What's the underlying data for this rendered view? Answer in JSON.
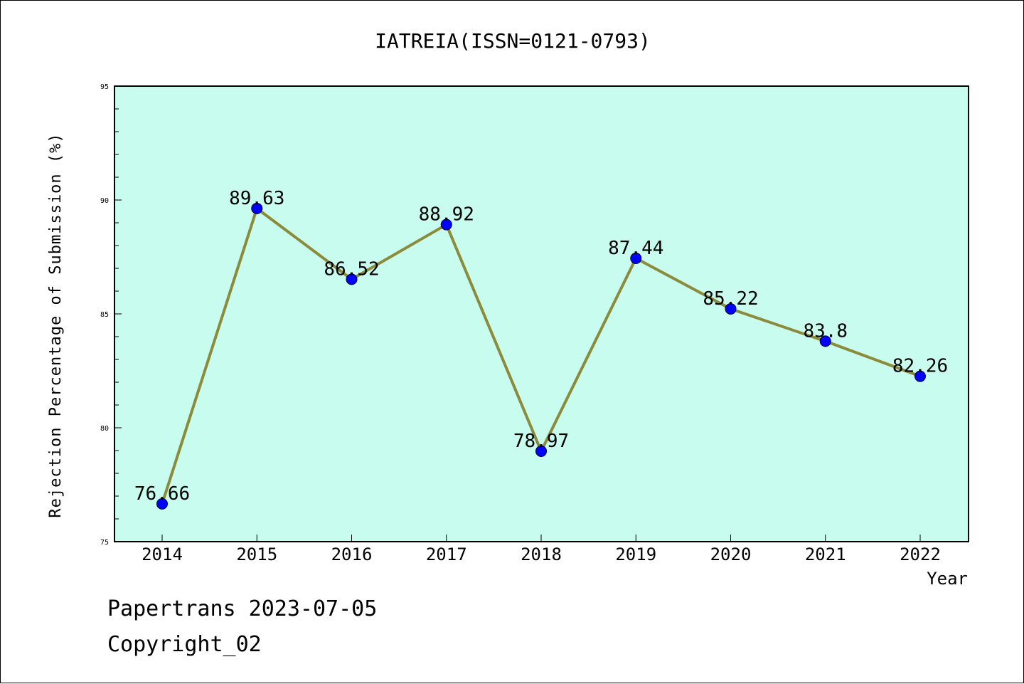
{
  "chart_data": {
    "type": "line",
    "title": "IATREIA(ISSN=0121-0793)",
    "xlabel": "Year",
    "ylabel": "Rejection Percentage of Submission (%)",
    "categories": [
      "2014",
      "2015",
      "2016",
      "2017",
      "2018",
      "2019",
      "2020",
      "2021",
      "2022"
    ],
    "series": [
      {
        "values": [
          76.66,
          89.63,
          86.52,
          88.92,
          78.97,
          87.44,
          85.22,
          83.8,
          82.26
        ],
        "labels": [
          "76.66",
          "89.63",
          "86.52",
          "88.92",
          "78.97",
          "87.44",
          "85.22",
          "83.8",
          "82.26"
        ],
        "line_color": "#8B8B3A",
        "marker_color": "#0000FF"
      }
    ],
    "ylim": [
      75,
      95
    ],
    "yticks": [
      "75",
      "80",
      "85",
      "90",
      "95"
    ],
    "plot_background": "#C8FCEE",
    "grid": false,
    "legend": false
  },
  "footer": {
    "line1": "Papertrans 2023-07-05",
    "line2": "Copyright_02"
  }
}
